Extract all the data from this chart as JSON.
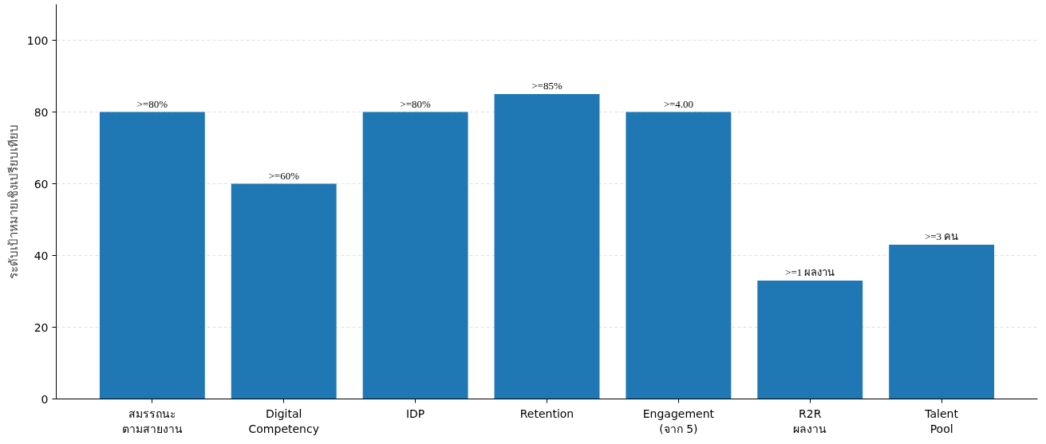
{
  "chart_data": {
    "type": "bar",
    "ylabel": "ระดับเป้าหมายเชิงเปรียบเทียบ",
    "categories": [
      "สมรรถนะ\nตามสายงาน",
      "Digital\nCompetency",
      "IDP",
      "Retention",
      "Engagement\n(จาก 5)",
      "R2R\nผลงาน",
      "Talent\nPool"
    ],
    "values": [
      80,
      60,
      80,
      85,
      80,
      33,
      43
    ],
    "value_labels": [
      ">=80%",
      ">=60%",
      ">=80%",
      ">=85%",
      ">=4.00",
      ">=1 ผลงาน",
      ">=3 คน"
    ],
    "color": "#1f77b4",
    "ylim": [
      0,
      110
    ],
    "yticks": [
      0,
      20,
      40,
      60,
      80,
      100
    ],
    "grid": "y"
  }
}
